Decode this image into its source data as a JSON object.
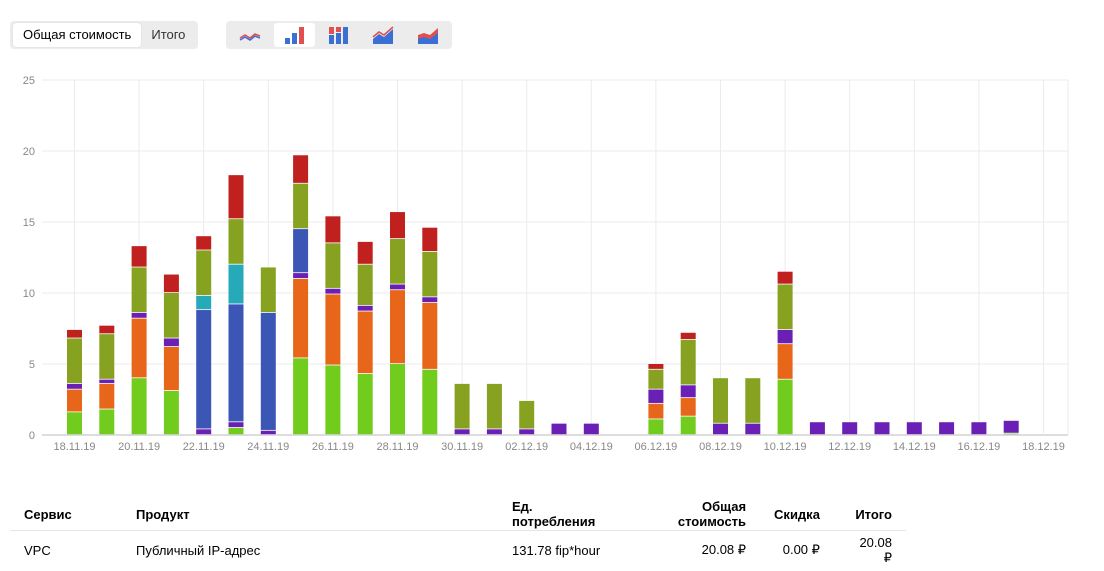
{
  "toolbar": {
    "tabs": [
      {
        "label": "Общая стоимость",
        "active": true
      },
      {
        "label": "Итого",
        "active": false
      }
    ],
    "chart_type_icons": [
      "line-chart-icon",
      "bar-chart-icon",
      "stacked-bar-chart-icon",
      "area-chart-icon",
      "stacked-area-chart-icon"
    ],
    "active_chart_type": 1
  },
  "chart_data": {
    "type": "bar",
    "stacked": true,
    "ylim": [
      0,
      25
    ],
    "yticks": [
      0,
      5,
      10,
      15,
      20,
      25
    ],
    "grid": true,
    "x_tick_labels": [
      "18.11.19",
      "20.11.19",
      "22.11.19",
      "24.11.19",
      "26.11.19",
      "28.11.19",
      "30.11.19",
      "02.12.19",
      "04.12.19",
      "06.12.19",
      "08.12.19",
      "10.12.19",
      "12.12.19",
      "14.12.19",
      "16.12.19",
      "18.12.19"
    ],
    "categories": [
      "18.11.19",
      "19.11.19",
      "20.11.19",
      "21.11.19",
      "22.11.19",
      "23.11.19",
      "24.11.19",
      "25.11.19",
      "26.11.19",
      "27.11.19",
      "28.11.19",
      "29.11.19",
      "30.11.19",
      "01.12.19",
      "02.12.19",
      "03.12.19",
      "04.12.19",
      "05.12.19",
      "06.12.19",
      "07.12.19",
      "08.12.19",
      "09.12.19",
      "10.12.19",
      "11.12.19",
      "12.12.19",
      "13.12.19",
      "14.12.19",
      "15.12.19",
      "16.12.19",
      "17.12.19"
    ],
    "series": [
      {
        "color": "#72cc1e",
        "values": [
          1.6,
          1.8,
          4.0,
          3.1,
          0,
          0.5,
          0,
          5.4,
          4.9,
          4.3,
          5.0,
          4.6,
          0,
          0,
          0,
          0,
          0,
          0,
          1.1,
          1.3,
          0,
          0,
          3.9,
          0,
          0,
          0,
          0,
          0,
          0,
          0.1
        ]
      },
      {
        "color": "#e8661a",
        "values": [
          1.6,
          1.8,
          4.2,
          3.1,
          0,
          0,
          0,
          5.6,
          5.0,
          4.4,
          5.2,
          4.7,
          0,
          0,
          0,
          0,
          0,
          0,
          1.1,
          1.3,
          0,
          0,
          2.5,
          0,
          0,
          0,
          0,
          0,
          0,
          0
        ]
      },
      {
        "color": "#6a1fb5",
        "values": [
          0.4,
          0.3,
          0.4,
          0.6,
          0.4,
          0.4,
          0.3,
          0.4,
          0.4,
          0.4,
          0.4,
          0.4,
          0.4,
          0.4,
          0.4,
          0.8,
          0.8,
          0,
          1.0,
          0.9,
          0.8,
          0.8,
          1.0,
          0.9,
          0.9,
          0.9,
          0.9,
          0.9,
          0.9,
          0.9
        ]
      },
      {
        "color": "#3c56b5",
        "values": [
          0,
          0,
          0,
          0,
          8.4,
          8.3,
          8.3,
          3.1,
          0,
          0,
          0,
          0,
          0,
          0,
          0,
          0,
          0,
          0,
          0,
          0,
          0,
          0,
          0,
          0,
          0,
          0,
          0,
          0,
          0,
          0
        ]
      },
      {
        "color": "#26a9b8",
        "values": [
          0,
          0,
          0,
          0,
          1.0,
          2.8,
          0,
          0,
          0,
          0,
          0,
          0,
          0,
          0,
          0,
          0,
          0,
          0,
          0,
          0,
          0,
          0,
          0,
          0,
          0,
          0,
          0,
          0,
          0,
          0
        ]
      },
      {
        "color": "#86a220",
        "values": [
          3.2,
          3.2,
          3.2,
          3.2,
          3.2,
          3.2,
          3.2,
          3.2,
          3.2,
          2.9,
          3.2,
          3.2,
          3.2,
          3.2,
          2.0,
          0,
          0,
          0,
          1.4,
          3.2,
          3.2,
          3.2,
          3.2,
          0,
          0,
          0,
          0,
          0,
          0,
          0
        ]
      },
      {
        "color": "#c0211f",
        "values": [
          0.6,
          0.6,
          1.5,
          1.3,
          1.0,
          3.1,
          0,
          2.0,
          1.9,
          1.6,
          1.9,
          1.7,
          0,
          0,
          0,
          0,
          0,
          0,
          0.4,
          0.5,
          0,
          0,
          0.9,
          0,
          0,
          0,
          0,
          0,
          0,
          0
        ]
      }
    ]
  },
  "table": {
    "headers": [
      "Сервис",
      "Продукт",
      "Ед. потребления",
      "Общая стоимость",
      "Скидка",
      "Итого"
    ],
    "rows": [
      {
        "service": "VPC",
        "product": "Публичный IP-адрес",
        "units": "131.78 fip*hour",
        "total_cost": "20.08 ₽",
        "discount": "0.00 ₽",
        "final": "20.08 ₽"
      }
    ]
  }
}
